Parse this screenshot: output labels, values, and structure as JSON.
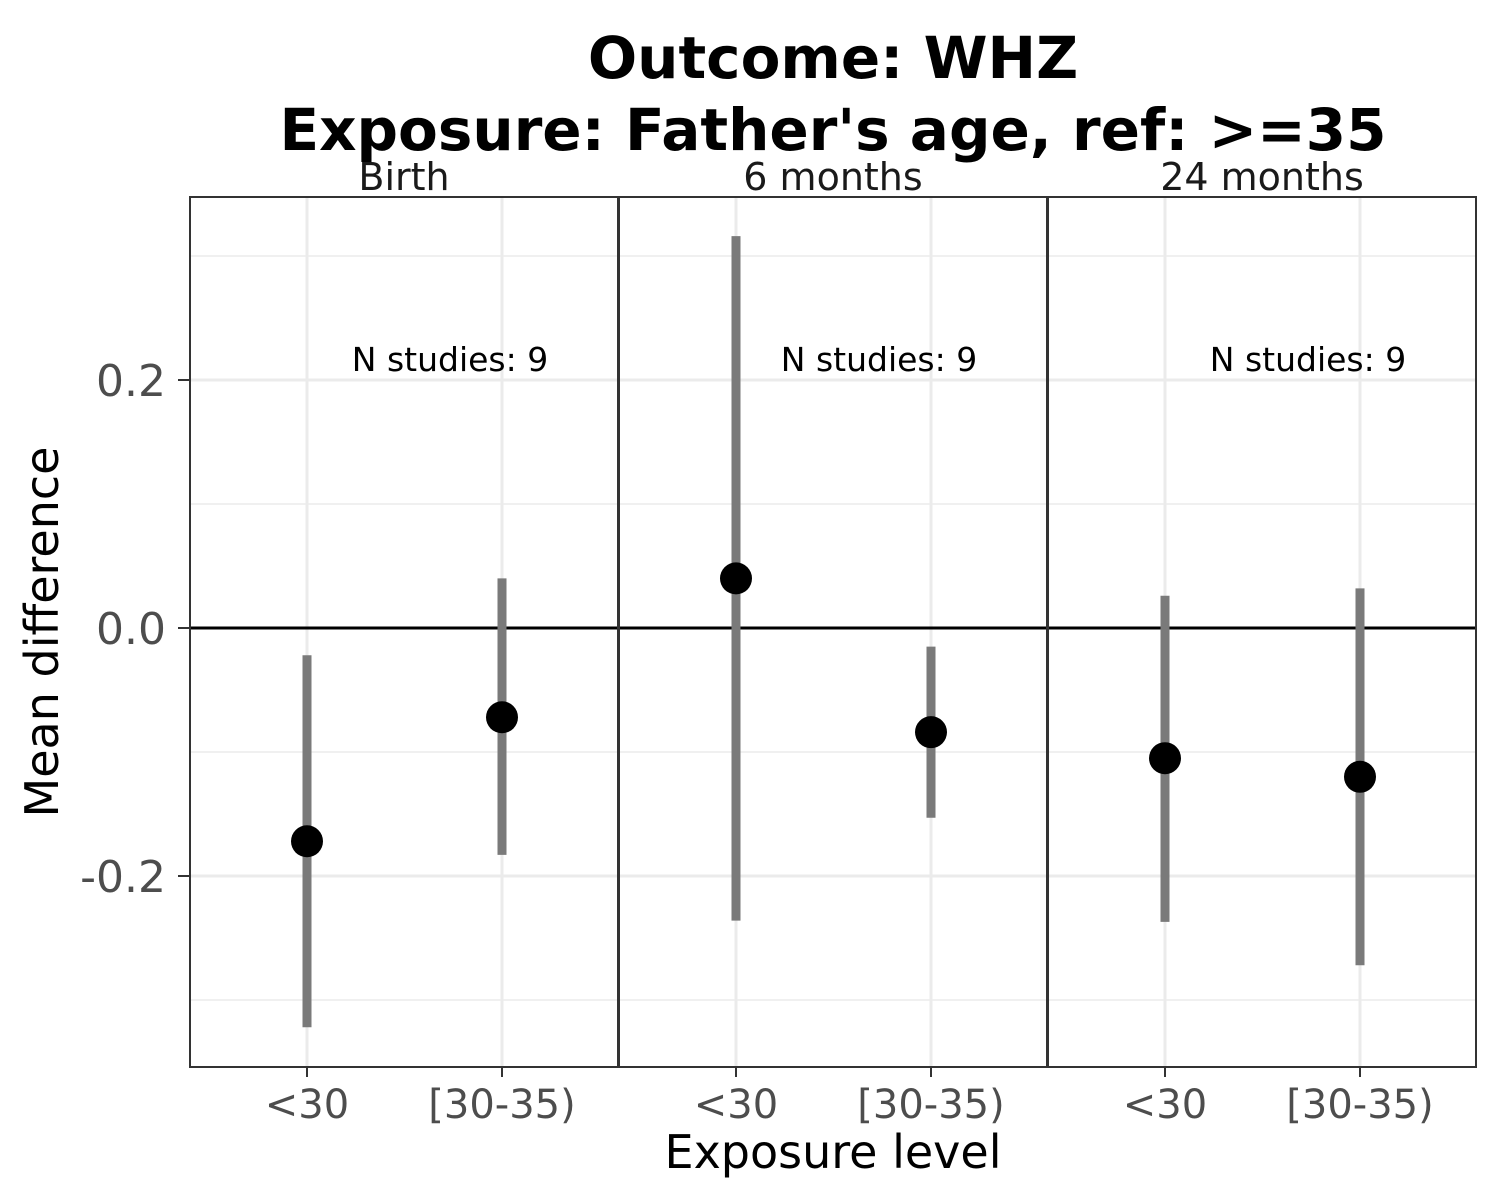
{
  "chart_data": {
    "type": "scatter",
    "title_line1": "Outcome: WHZ",
    "title_line2": "Exposure: Father's age, ref: >=35",
    "xlabel": "Exposure level",
    "ylabel": "Mean difference",
    "ylim": [
      -0.355,
      0.345
    ],
    "y_ticks": [
      -0.2,
      0.0,
      0.2
    ],
    "y_tick_labels": [
      "-0.2",
      "0.0",
      "0.2"
    ],
    "reference_line": 0,
    "grid": true,
    "categories": [
      "<30",
      "[30-35)"
    ],
    "panels": [
      {
        "label": "Birth",
        "annotation": "N studies: 9",
        "points": [
          {
            "category": "<30",
            "estimate": -0.172,
            "ci_lower": -0.322,
            "ci_upper": -0.022
          },
          {
            "category": "[30-35)",
            "estimate": -0.072,
            "ci_lower": -0.183,
            "ci_upper": 0.04
          }
        ]
      },
      {
        "label": "6 months",
        "annotation": "N studies: 9",
        "points": [
          {
            "category": "<30",
            "estimate": 0.04,
            "ci_lower": -0.236,
            "ci_upper": 0.316
          },
          {
            "category": "[30-35)",
            "estimate": -0.084,
            "ci_lower": -0.153,
            "ci_upper": -0.015
          }
        ]
      },
      {
        "label": "24 months",
        "annotation": "N studies: 9",
        "points": [
          {
            "category": "<30",
            "estimate": -0.105,
            "ci_lower": -0.237,
            "ci_upper": 0.026
          },
          {
            "category": "[30-35)",
            "estimate": -0.12,
            "ci_lower": -0.272,
            "ci_upper": 0.032
          }
        ]
      }
    ]
  }
}
